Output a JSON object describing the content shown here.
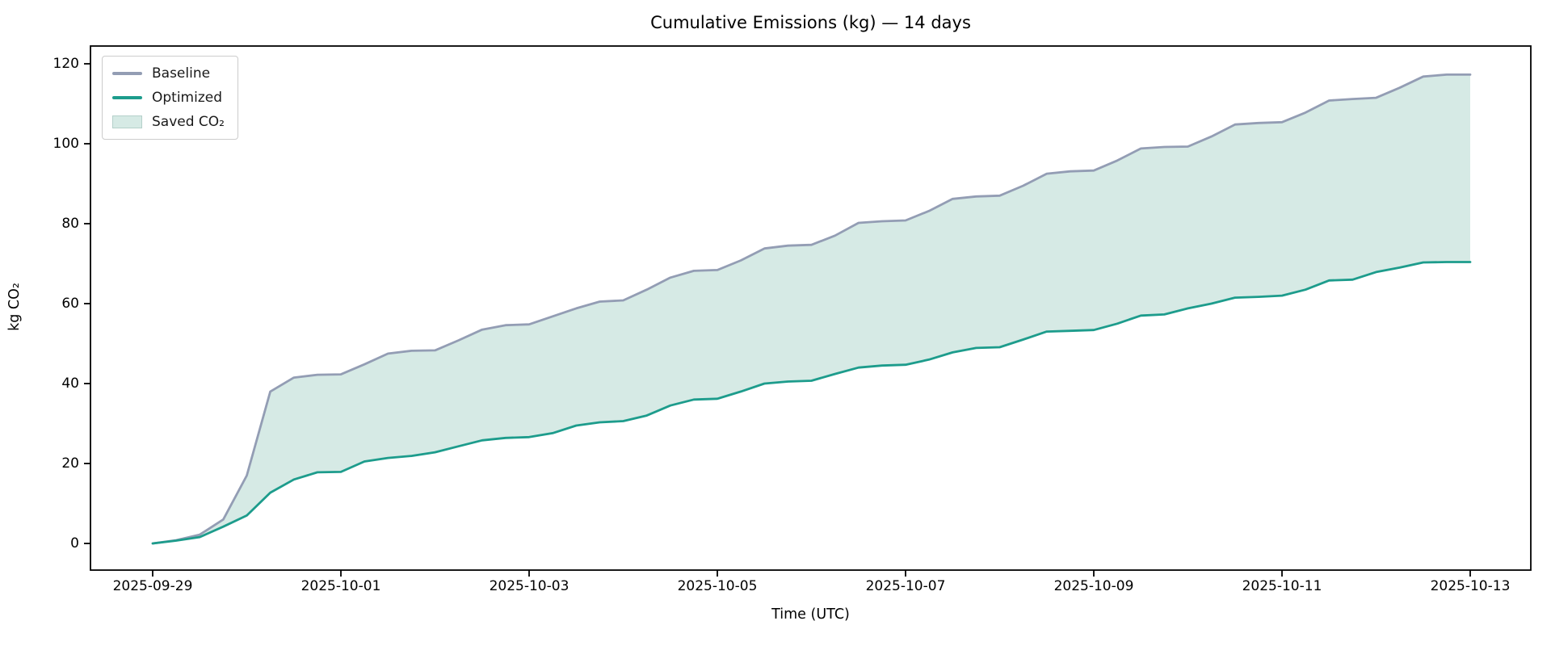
{
  "figure": {
    "title": "Cumulative Emissions (kg) — 14 days",
    "x_axis_label": "Time (UTC)",
    "y_axis_label": "kg CO₂"
  },
  "legend": {
    "items": [
      {
        "label": "Baseline",
        "swatch": "line",
        "color": "#939db4"
      },
      {
        "label": "Optimized",
        "swatch": "line",
        "color": "#1d9c8c"
      },
      {
        "label": "Saved CO₂",
        "swatch": "patch",
        "color": "#d6eae5"
      }
    ]
  },
  "chart_data": {
    "type": "area",
    "title": "Cumulative Emissions (kg) — 14 days",
    "xlabel": "Time (UTC)",
    "ylabel": "kg CO₂",
    "x_unit": "days since 2025-09-29 00:00 UTC",
    "x": [
      0,
      0.25,
      0.5,
      0.75,
      1,
      1.25,
      1.5,
      1.75,
      2,
      2.25,
      2.5,
      2.75,
      3,
      3.25,
      3.5,
      3.75,
      4,
      4.25,
      4.5,
      4.75,
      5,
      5.25,
      5.5,
      5.75,
      6,
      6.25,
      6.5,
      6.75,
      7,
      7.25,
      7.5,
      7.75,
      8,
      8.25,
      8.5,
      8.75,
      9,
      9.25,
      9.5,
      9.75,
      10,
      10.25,
      10.5,
      10.75,
      11,
      11.25,
      11.5,
      11.75,
      12,
      12.25,
      12.5,
      12.75,
      13,
      13.25,
      13.5,
      13.75,
      14
    ],
    "series": [
      {
        "name": "Baseline",
        "color": "#939db4",
        "values": [
          0,
          0.8,
          2.2,
          6,
          17,
          38,
          41.5,
          42.2,
          42.3,
          44.8,
          47.5,
          48.2,
          48.3,
          50.8,
          53.5,
          54.6,
          54.8,
          56.8,
          58.8,
          60.5,
          60.8,
          63.5,
          66.5,
          68.2,
          68.4,
          70.8,
          73.8,
          74.5,
          74.7,
          77,
          80.2,
          80.6,
          80.8,
          83.2,
          86.2,
          86.8,
          87,
          89.5,
          92.5,
          93.1,
          93.3,
          95.8,
          98.8,
          99.2,
          99.3,
          101.8,
          104.8,
          105.2,
          105.4,
          107.8,
          110.8,
          111.2,
          111.5,
          114,
          116.8,
          117.3,
          117.3
        ]
      },
      {
        "name": "Optimized",
        "color": "#1d9c8c",
        "values": [
          0,
          0.7,
          1.6,
          4.2,
          7,
          12.7,
          16,
          17.8,
          17.9,
          20.5,
          21.4,
          21.9,
          22.8,
          24.3,
          25.8,
          26.4,
          26.6,
          27.6,
          29.5,
          30.3,
          30.6,
          32,
          34.5,
          36,
          36.2,
          38,
          40,
          40.5,
          40.7,
          42.4,
          44,
          44.5,
          44.7,
          46,
          47.8,
          48.9,
          49.1,
          51,
          53,
          53.2,
          53.4,
          55,
          57,
          57.3,
          58.8,
          60,
          61.5,
          61.7,
          62,
          63.5,
          65.8,
          66,
          67.9,
          69,
          70.3,
          70.4,
          70.4
        ]
      }
    ],
    "band": {
      "name": "Saved CO₂",
      "between": [
        "Baseline",
        "Optimized"
      ],
      "fill_color": "#d6eae5"
    },
    "x_ticks": [
      {
        "label": "2025-09-29",
        "day": 0
      },
      {
        "label": "2025-10-01",
        "day": 2
      },
      {
        "label": "2025-10-03",
        "day": 4
      },
      {
        "label": "2025-10-05",
        "day": 6
      },
      {
        "label": "2025-10-07",
        "day": 8
      },
      {
        "label": "2025-10-09",
        "day": 10
      },
      {
        "label": "2025-10-11",
        "day": 12
      },
      {
        "label": "2025-10-13",
        "day": 14
      }
    ],
    "y_ticks": [
      0,
      20,
      40,
      60,
      80,
      100,
      120
    ],
    "ylim": [
      -7,
      131
    ],
    "xlim_days": [
      -0.66,
      14.65
    ],
    "grid": false,
    "legend_position": "upper left"
  }
}
